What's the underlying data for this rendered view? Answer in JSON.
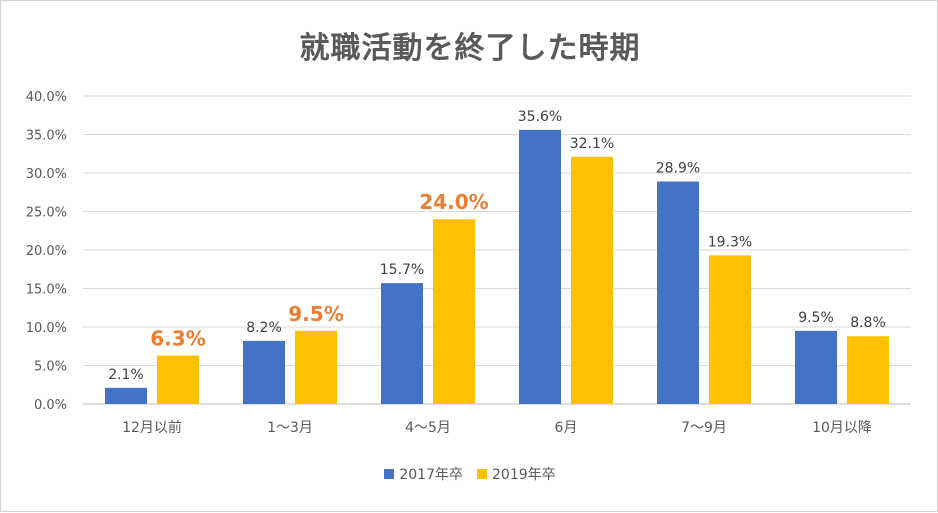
{
  "chart_data": {
    "type": "bar",
    "title": "就職活動を終了した時期",
    "xlabel": "",
    "ylabel": "",
    "ylim": [
      0,
      40
    ],
    "yticks": [
      "0.0%",
      "5.0%",
      "10.0%",
      "15.0%",
      "20.0%",
      "25.0%",
      "30.0%",
      "35.0%",
      "40.0%"
    ],
    "categories": [
      "12月以前",
      "1～3月",
      "4～5月",
      "6月",
      "7～9月",
      "10月以降"
    ],
    "series": [
      {
        "name": "2017年卒",
        "color": "#4472C4",
        "values": [
          2.1,
          8.2,
          15.7,
          35.6,
          28.9,
          9.5
        ],
        "labels": [
          "2.1%",
          "8.2%",
          "15.7%",
          "35.6%",
          "28.9%",
          "9.5%"
        ]
      },
      {
        "name": "2019年卒",
        "color": "#FFC000",
        "values": [
          6.3,
          9.5,
          24.0,
          32.1,
          19.3,
          8.8
        ],
        "labels": [
          "6.3%",
          "9.5%",
          "24.0%",
          "32.1%",
          "19.3%",
          "8.8%"
        ],
        "highlighted_labels": [
          true,
          true,
          true,
          false,
          false,
          false
        ],
        "highlight_color": "#ED7D31"
      }
    ],
    "grid": true,
    "legend": "bottom"
  }
}
